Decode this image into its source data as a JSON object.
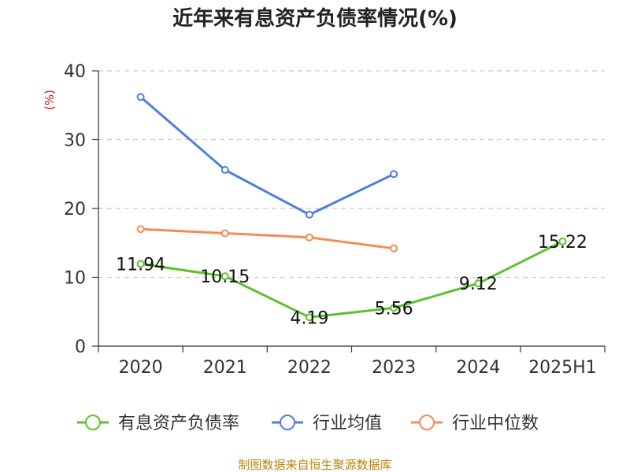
{
  "chart_data": {
    "type": "line",
    "title": "近年来有息资产负债率情况(%)",
    "ylabel": "(%)",
    "xlabel": "",
    "ylim": [
      0,
      40
    ],
    "yticks": [
      "0",
      "10",
      "20",
      "30",
      "40"
    ],
    "categories": [
      "2020",
      "2021",
      "2022",
      "2023",
      "2024",
      "2025H1"
    ],
    "grid": "horizontal-dashed",
    "legend_position": "bottom",
    "series": [
      {
        "name": "有息资产负债率",
        "color": "#5cc22b",
        "values": [
          11.94,
          10.15,
          4.19,
          5.56,
          9.12,
          15.22
        ],
        "labels": [
          "11.94",
          "10.15",
          "4.19",
          "5.56",
          "9.12",
          "15.22"
        ]
      },
      {
        "name": "行业均值",
        "color": "#4f7fdc",
        "values": [
          36.2,
          25.6,
          19.1,
          25.0,
          null,
          null
        ],
        "labels": null
      },
      {
        "name": "行业中位数",
        "color": "#f58b54",
        "values": [
          17.0,
          16.4,
          15.8,
          14.2,
          null,
          null
        ],
        "labels": null
      }
    ]
  },
  "source": "制图数据来自恒生聚源数据库"
}
